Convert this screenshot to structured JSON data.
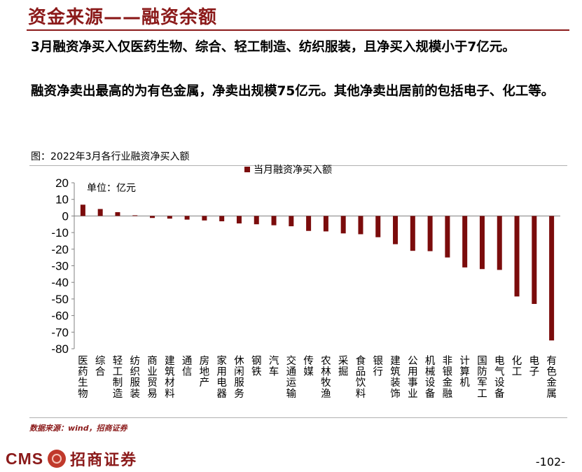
{
  "header": {
    "title": "资金来源——融资余额"
  },
  "paragraphs": [
    "3月融资净买入仅医药生物、综合、轻工制造、纺织服装，且净买入规模小于7亿元。",
    "融资净卖出最高的为有色金属，净卖出规模75亿元。其他净卖出居前的包括电子、化工等。"
  ],
  "chart_caption": "图：2022年3月各行业融资净买入额",
  "source": "数据来源：wind，招商证券",
  "footer": {
    "logo_text": "CMS",
    "logo_cn": "招商证券",
    "page_number": "-102-"
  },
  "colors": {
    "accent": "#8b1a1a",
    "bar": "#7b0c0c"
  },
  "chart_data": {
    "type": "bar",
    "unit_label": "单位：亿元",
    "legend": {
      "label": "当月融资净买入额",
      "position": "top-right"
    },
    "ylim": [
      -80,
      20
    ],
    "yticks": [
      20,
      10,
      0,
      -10,
      -20,
      -30,
      -40,
      -50,
      -60,
      -70,
      -80
    ],
    "grid": false,
    "categories": [
      "医药生物",
      "综合",
      "轻工制造",
      "纺织服装",
      "商业贸易",
      "建筑材料",
      "通信",
      "房地产",
      "家用电器",
      "休闲服务",
      "钢铁",
      "汽车",
      "交通运输",
      "传媒",
      "农林牧渔",
      "采掘",
      "食品饮料",
      "银行",
      "建筑装饰",
      "公用事业",
      "机械设备",
      "非银金融",
      "计算机",
      "国防军工",
      "电气设备",
      "化工",
      "电子",
      "有色金属"
    ],
    "series": [
      {
        "name": "当月融资净买入额",
        "values": [
          6.8,
          4.2,
          2.3,
          0.4,
          -1.2,
          -1.6,
          -2.2,
          -2.7,
          -3.2,
          -4.5,
          -5.0,
          -5.6,
          -6.2,
          -9.0,
          -9.3,
          -10.5,
          -11.0,
          -12.8,
          -17.0,
          -21.0,
          -21.2,
          -25.0,
          -31.0,
          -32.0,
          -32.5,
          -48.5,
          -53.0,
          -75.0
        ]
      }
    ]
  }
}
